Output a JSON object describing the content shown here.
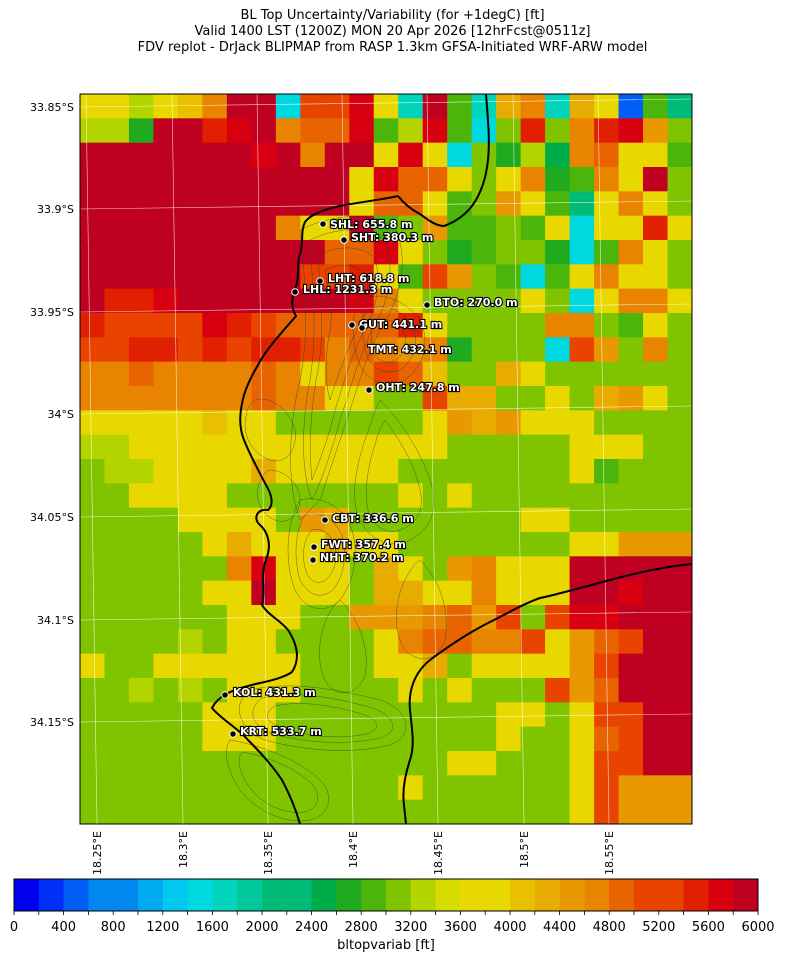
{
  "title": {
    "line1": "BL Top Uncertainty/Variability (for +1degC) [ft]",
    "line2": "Valid 1400 LST (1200Z) MON 20 Apr 2026 [12hrFcst@0511z]",
    "line3": "FDV replot - DrJack BLIPMAP from RASP 1.3km GFSA-Initiated WRF-ARW model"
  },
  "map": {
    "lat_labels": [
      "33.85°S",
      "33.9°S",
      "33.95°S",
      "34°S",
      "34.05°S",
      "34.1°S",
      "34.15°S"
    ],
    "lon_labels": [
      "18.25°E",
      "18.3°E",
      "18.35°E",
      "18.4°E",
      "18.45°E",
      "18.5°E",
      "18.55°E"
    ],
    "sites": [
      {
        "code": "SHL",
        "label": "SHL: 655.8 m"
      },
      {
        "code": "SHT",
        "label": "SHT: 380.3 m"
      },
      {
        "code": "LHT",
        "label": "LHT: 618.8 m"
      },
      {
        "code": "LHL",
        "label": "LHL: 1231.3 m"
      },
      {
        "code": "BTO",
        "label": "BTO: 270.0 m"
      },
      {
        "code": "GUT",
        "label": "GUT: 441.1 m"
      },
      {
        "code": "TMT",
        "label": "TMT: 432.1 m"
      },
      {
        "code": "OHT",
        "label": "OHT: 247.8 m"
      },
      {
        "code": "CBT",
        "label": "CBT: 336.6 m"
      },
      {
        "code": "FWT",
        "label": "FWT: 357.4 m"
      },
      {
        "code": "NHT",
        "label": "NHT: 370.2 m"
      },
      {
        "code": "KOL",
        "label": "KOL: 431.3 m"
      },
      {
        "code": "KRT",
        "label": "KRT: 533.7 m"
      }
    ]
  },
  "colorbar": {
    "min": 0,
    "max": 6000,
    "step": 200,
    "tick_labels": [
      "0",
      "400",
      "800",
      "1200",
      "1600",
      "2000",
      "2400",
      "2800",
      "3200",
      "3600",
      "4000",
      "4400",
      "4800",
      "5200",
      "5600",
      "6000"
    ],
    "colors": [
      "#0000ee",
      "#0030f5",
      "#005ef5",
      "#0088ee",
      "#00aaee",
      "#00c8ee",
      "#00d8e0",
      "#00d4bb",
      "#00c89a",
      "#00ba77",
      "#00ab4a",
      "#20aa20",
      "#4cb50c",
      "#80c400",
      "#b4d400",
      "#d6dc00",
      "#e8d800",
      "#e8c000",
      "#e8ac00",
      "#e89800",
      "#e88400",
      "#e86400",
      "#e84400",
      "#e02000",
      "#d80010",
      "#c00020"
    ],
    "label": "bltopvariab [ft]"
  },
  "colors": {
    "coastline": "#000000",
    "contours": "#1a3a3a",
    "grid": "#ffffff"
  }
}
